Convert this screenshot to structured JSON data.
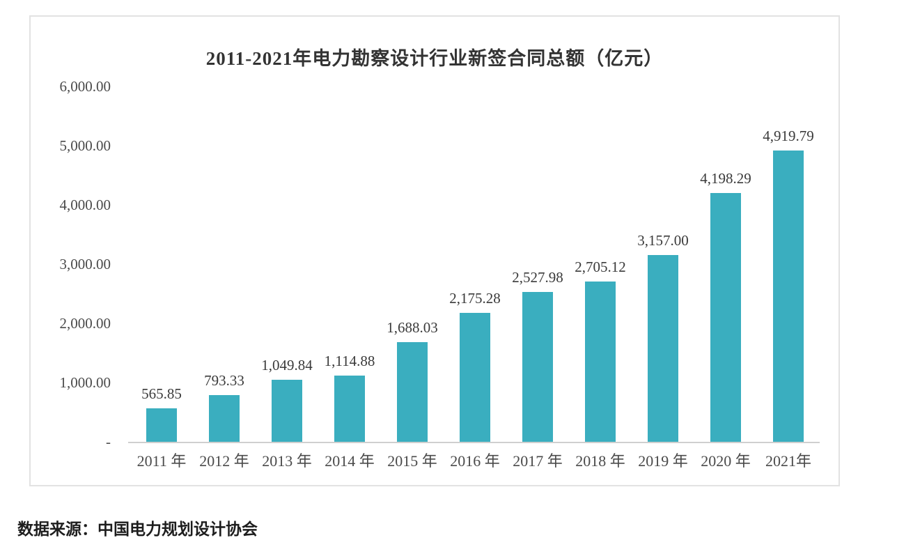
{
  "chart_data": {
    "type": "bar",
    "title": "2011-2021年电力勘察设计行业新签合同总额（亿元）",
    "categories": [
      "2011 年",
      "2012 年",
      "2013 年",
      "2014 年",
      "2015 年",
      "2016 年",
      "2017 年",
      "2018 年",
      "2019 年",
      "2020 年",
      "2021年"
    ],
    "values": [
      565.85,
      793.33,
      1049.84,
      1114.88,
      1688.03,
      2175.28,
      2527.98,
      2705.12,
      3157.0,
      4198.29,
      4919.79
    ],
    "value_labels": [
      "565.85",
      "793.33",
      "1,049.84",
      "1,114.88",
      "1,688.03",
      "2,175.28",
      "2,527.98",
      "2,705.12",
      "3,157.00",
      "4,198.29",
      "4,919.79"
    ],
    "y_ticks": [
      {
        "label": "6,000.00",
        "value": 6000
      },
      {
        "label": "5,000.00",
        "value": 5000
      },
      {
        "label": "4,000.00",
        "value": 4000
      },
      {
        "label": "3,000.00",
        "value": 3000
      },
      {
        "label": "2,000.00",
        "value": 2000
      },
      {
        "label": "1,000.00",
        "value": 1000
      },
      {
        "label": "-",
        "value": 0
      }
    ],
    "ylim": [
      0,
      6000
    ],
    "grid": false,
    "legend": "none",
    "bar_color": "#3aaebf"
  },
  "source_note": "数据来源：中国电力规划设计协会"
}
